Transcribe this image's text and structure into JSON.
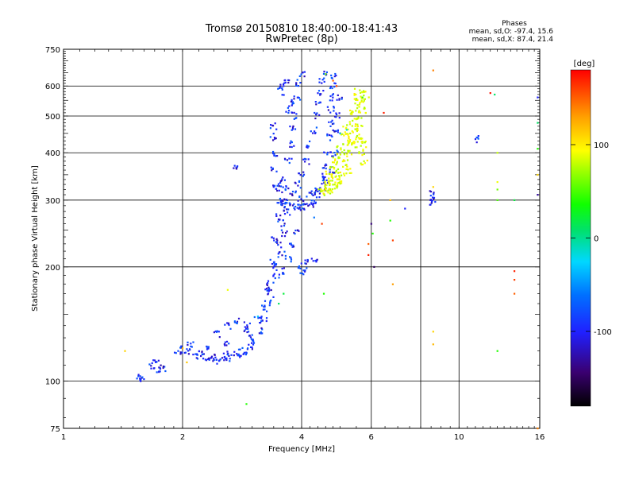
{
  "header": {
    "title_line1": "Tromsø 20150810 18:40:00-18:41:43",
    "title_line2": "RwPretec (8p)",
    "stats_title": "Phases",
    "stats_o": "mean, sd,O: -97.4, 15.6",
    "stats_x": "mean, sd,X:  87.4, 21.4"
  },
  "colorbar": {
    "unit_label": "[deg]",
    "range": [
      -180,
      180
    ],
    "ticks": [
      "100",
      "0",
      "-100"
    ],
    "tick_values": [
      100,
      0,
      -100
    ]
  },
  "chart_data": {
    "type": "scatter",
    "xlabel": "Frequency [MHz]",
    "ylabel": "Stationary phase Virtual Height [km]",
    "xscale": "log",
    "yscale": "log",
    "xlim": [
      1,
      16
    ],
    "ylim": [
      75,
      750
    ],
    "x_ticks": [
      "1",
      "2",
      "4",
      "6",
      "10",
      "16"
    ],
    "x_tick_values": [
      1,
      2,
      4,
      6,
      10,
      16
    ],
    "x_grid_values": [
      2,
      4,
      6,
      8,
      10
    ],
    "y_ticks": [
      "75",
      "100",
      "200",
      "300",
      "400",
      "500",
      "600",
      "750"
    ],
    "y_tick_values": [
      75,
      100,
      200,
      300,
      400,
      500,
      600,
      750
    ],
    "y_grid_values": [
      100,
      200,
      300,
      400,
      500,
      600
    ],
    "grid": true,
    "color_variable": "phase [deg]",
    "series": [
      {
        "mode": "O",
        "color_phase": -97,
        "points": [
          [
            1.55,
            101
          ],
          [
            1.57,
            103
          ],
          [
            1.68,
            110
          ],
          [
            1.71,
            113
          ],
          [
            1.75,
            107
          ],
          [
            1.78,
            108
          ],
          [
            1.95,
            121
          ],
          [
            2.05,
            119
          ],
          [
            2.15,
            117
          ],
          [
            2.25,
            116
          ],
          [
            2.35,
            115
          ],
          [
            2.45,
            115
          ],
          [
            2.55,
            116
          ],
          [
            2.65,
            117
          ],
          [
            2.75,
            118
          ],
          [
            2.85,
            120
          ],
          [
            2.95,
            123
          ],
          [
            3.05,
            127
          ],
          [
            3.15,
            135
          ],
          [
            3.22,
            145
          ],
          [
            3.28,
            160
          ],
          [
            3.33,
            180
          ],
          [
            3.38,
            205
          ],
          [
            3.42,
            235
          ],
          [
            3.46,
            270
          ],
          [
            3.5,
            300
          ],
          [
            2.1,
            125
          ],
          [
            2.3,
            122
          ],
          [
            2.6,
            125
          ],
          [
            2.9,
            135
          ],
          [
            3.1,
            145
          ],
          [
            3.2,
            155
          ],
          [
            3.3,
            175
          ],
          [
            3.4,
            200
          ],
          [
            3.5,
            230
          ],
          [
            3.55,
            260
          ],
          [
            3.6,
            290
          ],
          [
            3.65,
            320
          ],
          [
            3.45,
            330
          ],
          [
            3.42,
            360
          ],
          [
            3.4,
            400
          ],
          [
            3.38,
            440
          ],
          [
            3.4,
            470
          ],
          [
            3.5,
            320
          ],
          [
            3.6,
            340
          ],
          [
            3.7,
            380
          ],
          [
            3.75,
            420
          ],
          [
            3.8,
            460
          ],
          [
            3.85,
            500
          ],
          [
            3.9,
            560
          ],
          [
            3.95,
            610
          ],
          [
            4.0,
            640
          ],
          [
            3.6,
            300
          ],
          [
            3.7,
            295
          ],
          [
            3.8,
            290
          ],
          [
            3.9,
            288
          ],
          [
            4.0,
            287
          ],
          [
            4.1,
            289
          ],
          [
            4.2,
            293
          ],
          [
            4.3,
            300
          ],
          [
            4.4,
            310
          ],
          [
            4.5,
            325
          ],
          [
            4.55,
            345
          ],
          [
            4.6,
            370
          ],
          [
            4.65,
            400
          ],
          [
            4.7,
            440
          ],
          [
            4.72,
            480
          ],
          [
            4.75,
            520
          ],
          [
            4.78,
            560
          ],
          [
            4.8,
            600
          ],
          [
            4.82,
            640
          ],
          [
            3.8,
            310
          ],
          [
            4.0,
            305
          ],
          [
            4.2,
            310
          ],
          [
            4.4,
            320
          ],
          [
            4.6,
            340
          ],
          [
            4.75,
            360
          ],
          [
            4.85,
            400
          ],
          [
            4.9,
            450
          ],
          [
            4.95,
            500
          ],
          [
            5.0,
            560
          ],
          [
            3.9,
            330
          ],
          [
            4.0,
            350
          ],
          [
            4.1,
            380
          ],
          [
            4.2,
            420
          ],
          [
            4.3,
            460
          ],
          [
            4.35,
            500
          ],
          [
            4.4,
            540
          ],
          [
            4.45,
            580
          ],
          [
            4.5,
            620
          ],
          [
            4.55,
            650
          ],
          [
            3.6,
            195
          ],
          [
            3.7,
            210
          ],
          [
            3.8,
            230
          ],
          [
            3.9,
            250
          ],
          [
            4.0,
            200
          ],
          [
            4.05,
            195
          ],
          [
            4.1,
            205
          ],
          [
            4.3,
            210
          ],
          [
            3.55,
            580
          ],
          [
            3.6,
            600
          ],
          [
            3.65,
            620
          ],
          [
            3.7,
            520
          ],
          [
            3.75,
            540
          ],
          [
            2.0,
            120
          ],
          [
            2.2,
            118
          ],
          [
            2.4,
            113
          ],
          [
            2.6,
            114
          ],
          [
            2.8,
            119
          ],
          [
            3.0,
            130
          ],
          [
            3.35,
            170
          ],
          [
            3.45,
            190
          ],
          [
            3.55,
            215
          ],
          [
            3.62,
            245
          ],
          [
            3.68,
            280
          ],
          [
            2.7,
            370
          ],
          [
            2.6,
            140
          ],
          [
            2.75,
            145
          ],
          [
            2.45,
            133
          ],
          [
            2.9,
            140
          ],
          [
            8.6,
            295
          ],
          [
            8.6,
            305
          ],
          [
            8.6,
            315
          ],
          [
            11.1,
            435
          ]
        ]
      },
      {
        "mode": "X",
        "color_phase": 87,
        "points": [
          [
            4.55,
            320
          ],
          [
            4.65,
            315
          ],
          [
            4.75,
            318
          ],
          [
            4.85,
            325
          ],
          [
            4.95,
            340
          ],
          [
            5.05,
            355
          ],
          [
            5.15,
            375
          ],
          [
            5.25,
            400
          ],
          [
            5.35,
            430
          ],
          [
            5.45,
            460
          ],
          [
            5.55,
            500
          ],
          [
            5.65,
            540
          ],
          [
            5.7,
            570
          ],
          [
            4.6,
            330
          ],
          [
            4.7,
            335
          ],
          [
            4.8,
            345
          ],
          [
            4.9,
            360
          ],
          [
            5.0,
            380
          ],
          [
            5.1,
            400
          ],
          [
            5.2,
            425
          ],
          [
            5.3,
            450
          ],
          [
            5.4,
            480
          ],
          [
            5.5,
            520
          ],
          [
            4.7,
            350
          ],
          [
            4.8,
            370
          ],
          [
            4.9,
            390
          ],
          [
            5.0,
            420
          ],
          [
            5.1,
            445
          ],
          [
            5.2,
            470
          ],
          [
            5.35,
            510
          ],
          [
            5.45,
            545
          ],
          [
            5.55,
            580
          ],
          [
            5.6,
            470
          ],
          [
            5.65,
            430
          ],
          [
            5.7,
            400
          ],
          [
            5.75,
            380
          ],
          [
            5.75,
            420
          ],
          [
            5.7,
            520
          ],
          [
            5.8,
            560
          ],
          [
            4.5,
            315
          ],
          [
            4.95,
            335
          ],
          [
            5.25,
            360
          ],
          [
            5.45,
            420
          ],
          [
            5.55,
            440
          ]
        ]
      }
    ],
    "scattered_points": [
      {
        "x": 1.43,
        "y": 120,
        "phase": 110
      },
      {
        "x": 2.0,
        "y": 122,
        "phase": 120
      },
      {
        "x": 2.05,
        "y": 112,
        "phase": 115
      },
      {
        "x": 2.6,
        "y": 174,
        "phase": 90
      },
      {
        "x": 2.9,
        "y": 87,
        "phase": 40
      },
      {
        "x": 3.6,
        "y": 170,
        "phase": 20
      },
      {
        "x": 3.1,
        "y": 148,
        "phase": -30
      },
      {
        "x": 3.5,
        "y": 160,
        "phase": 10
      },
      {
        "x": 4.55,
        "y": 170,
        "phase": 40
      },
      {
        "x": 4.5,
        "y": 260,
        "phase": 160
      },
      {
        "x": 4.7,
        "y": 330,
        "phase": 90
      },
      {
        "x": 4.3,
        "y": 270,
        "phase": -60
      },
      {
        "x": 4.6,
        "y": 645,
        "phase": 60
      },
      {
        "x": 4.8,
        "y": 620,
        "phase": 150
      },
      {
        "x": 4.9,
        "y": 600,
        "phase": 160
      },
      {
        "x": 5.2,
        "y": 460,
        "phase": -20
      },
      {
        "x": 5.0,
        "y": 450,
        "phase": -40
      },
      {
        "x": 5.7,
        "y": 560,
        "phase": 45
      },
      {
        "x": 5.8,
        "y": 580,
        "phase": 100
      },
      {
        "x": 6.0,
        "y": 260,
        "phase": -140
      },
      {
        "x": 5.9,
        "y": 230,
        "phase": 150
      },
      {
        "x": 5.9,
        "y": 215,
        "phase": 170
      },
      {
        "x": 6.1,
        "y": 200,
        "phase": -150
      },
      {
        "x": 6.05,
        "y": 245,
        "phase": 40
      },
      {
        "x": 6.45,
        "y": 510,
        "phase": 170
      },
      {
        "x": 6.7,
        "y": 265,
        "phase": 40
      },
      {
        "x": 6.7,
        "y": 300,
        "phase": 120
      },
      {
        "x": 6.8,
        "y": 235,
        "phase": 160
      },
      {
        "x": 6.8,
        "y": 180,
        "phase": 130
      },
      {
        "x": 7.3,
        "y": 285,
        "phase": -100
      },
      {
        "x": 8.6,
        "y": 660,
        "phase": 140
      },
      {
        "x": 8.6,
        "y": 125,
        "phase": 120
      },
      {
        "x": 8.6,
        "y": 135,
        "phase": 110
      },
      {
        "x": 8.6,
        "y": 325,
        "phase": 110
      },
      {
        "x": 12.0,
        "y": 575,
        "phase": 175
      },
      {
        "x": 12.3,
        "y": 570,
        "phase": 10
      },
      {
        "x": 12.5,
        "y": 120,
        "phase": 40
      },
      {
        "x": 12.5,
        "y": 300,
        "phase": 50
      },
      {
        "x": 12.5,
        "y": 320,
        "phase": 60
      },
      {
        "x": 12.5,
        "y": 335,
        "phase": 90
      },
      {
        "x": 12.5,
        "y": 400,
        "phase": 80
      },
      {
        "x": 13.8,
        "y": 195,
        "phase": 170
      },
      {
        "x": 13.8,
        "y": 185,
        "phase": 160
      },
      {
        "x": 13.8,
        "y": 170,
        "phase": 150
      },
      {
        "x": 13.8,
        "y": 300,
        "phase": 20
      },
      {
        "x": 15.8,
        "y": 560,
        "phase": -100
      },
      {
        "x": 15.8,
        "y": 480,
        "phase": 10
      },
      {
        "x": 15.8,
        "y": 410,
        "phase": 40
      },
      {
        "x": 15.8,
        "y": 350,
        "phase": 110
      },
      {
        "x": 15.8,
        "y": 310,
        "phase": -130
      },
      {
        "x": 15.8,
        "y": 75,
        "phase": 140
      }
    ]
  }
}
